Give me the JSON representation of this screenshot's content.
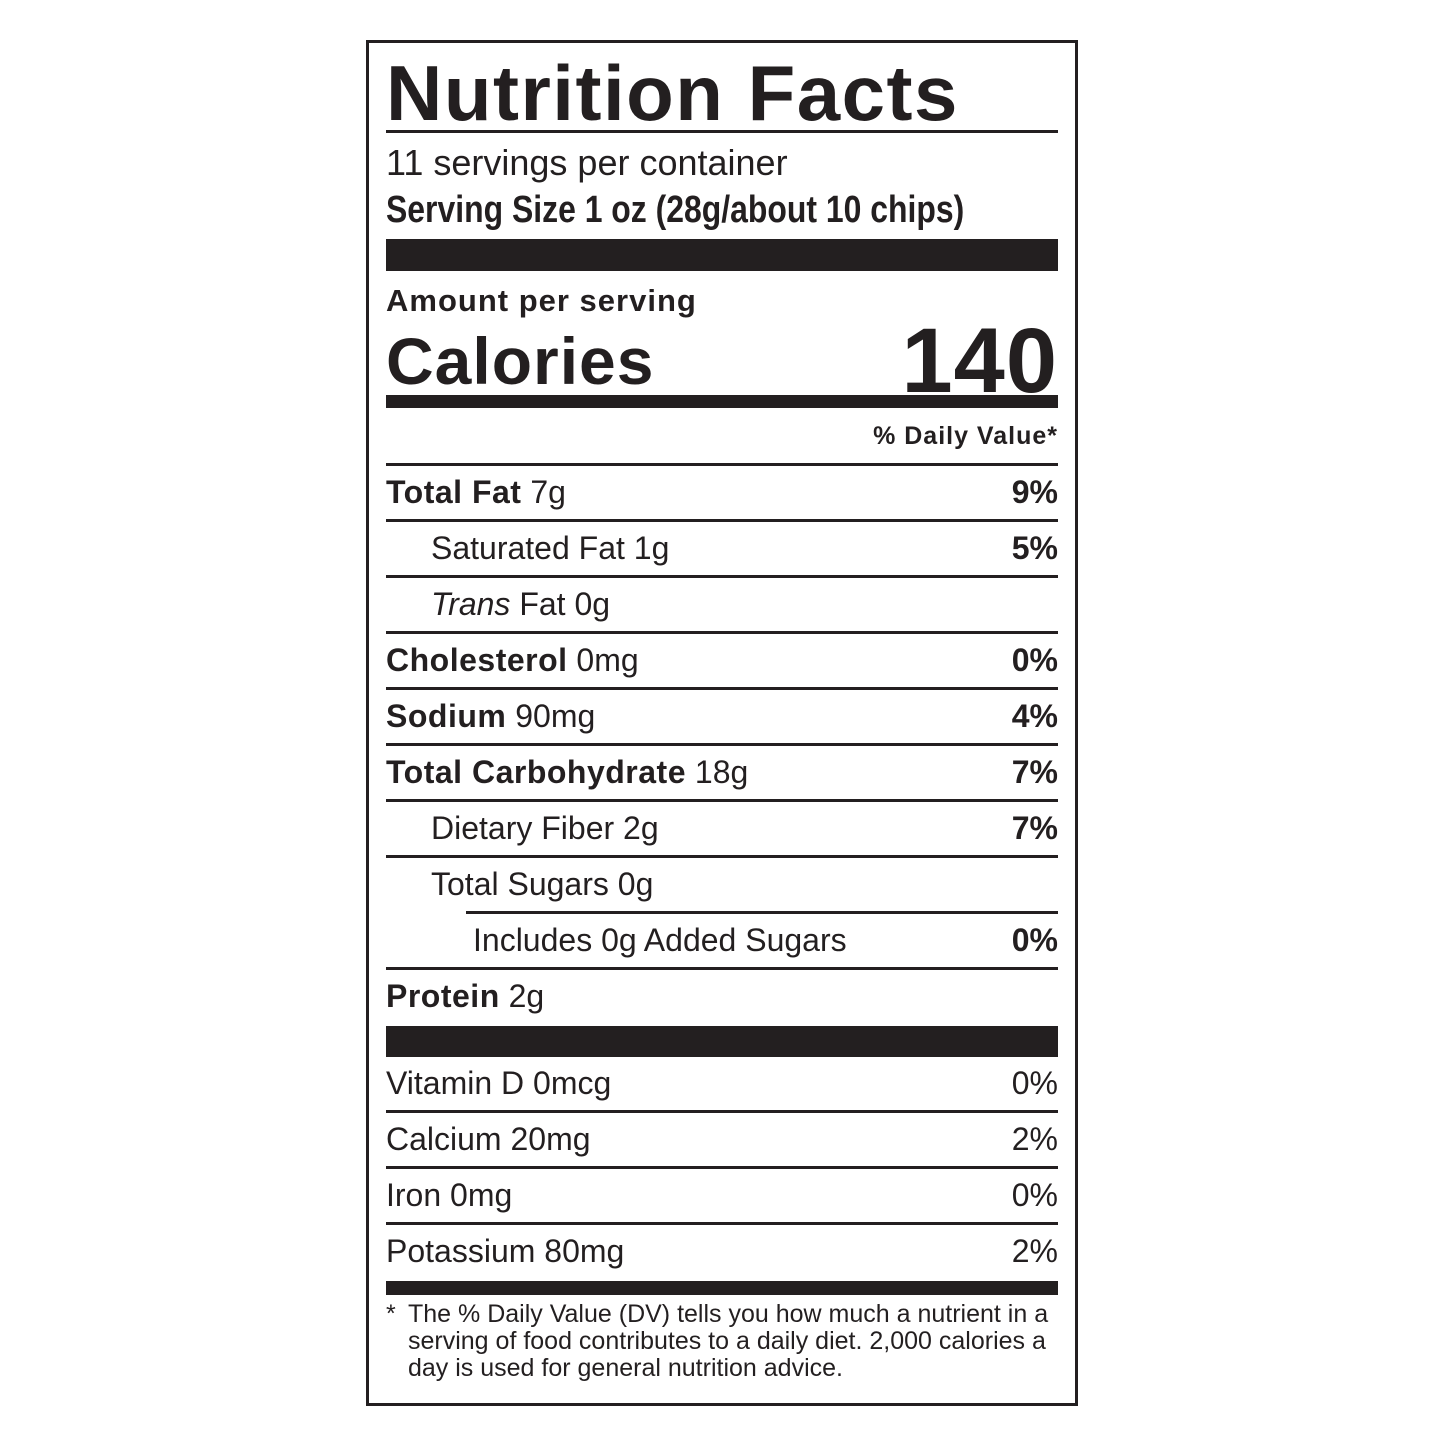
{
  "title": "Nutrition Facts",
  "servings_per_container": "11 servings per container",
  "serving_size": "Serving Size 1 oz (28g/about 10 chips)",
  "amount_per_serving": "Amount per serving",
  "calories_label": "Calories",
  "calories_value": "140",
  "daily_value_header": "% Daily Value*",
  "nutrients": [
    {
      "name": "Total Fat",
      "amount": "7g",
      "dv": "9%"
    },
    {
      "name": "Saturated Fat",
      "amount": "1g",
      "dv": "5%"
    },
    {
      "name_italic": "Trans",
      "name": "Fat",
      "amount": "0g",
      "dv": ""
    },
    {
      "name": "Cholesterol",
      "amount": "0mg",
      "dv": "0%"
    },
    {
      "name": "Sodium",
      "amount": "90mg",
      "dv": "4%"
    },
    {
      "name": "Total Carbohydrate",
      "amount": "18g",
      "dv": "7%"
    },
    {
      "name": "Dietary Fiber",
      "amount": "2g",
      "dv": "7%"
    },
    {
      "name": "Total Sugars",
      "amount": "0g",
      "dv": ""
    },
    {
      "name": "Includes 0g Added Sugars",
      "amount": "",
      "dv": "0%"
    },
    {
      "name": "Protein",
      "amount": "2g",
      "dv": ""
    }
  ],
  "vitamins": [
    {
      "name": "Vitamin D",
      "amount": "0mcg",
      "dv": "0%"
    },
    {
      "name": "Calcium",
      "amount": "20mg",
      "dv": "2%"
    },
    {
      "name": "Iron",
      "amount": "0mg",
      "dv": "0%"
    },
    {
      "name": "Potassium",
      "amount": "80mg",
      "dv": "2%"
    }
  ],
  "footnote_marker": "*",
  "footnote": "The % Daily Value (DV) tells you how much a nutrient in a serving of food contributes to a daily diet. 2,000 calories a day is used for general nutrition advice."
}
